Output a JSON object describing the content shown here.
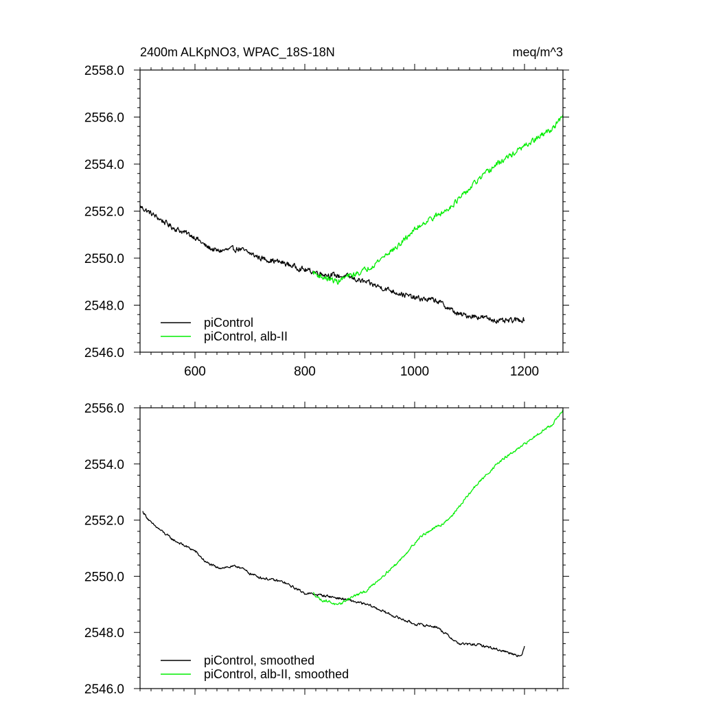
{
  "figure_title_left": "2400m ALKpNO3, WPAC_18S-18N",
  "figure_title_right": "meq/m^3",
  "colors": {
    "control": "#000000",
    "albII": "#00ee00"
  },
  "chart_data": [
    {
      "type": "line",
      "title": "2400m ALKpNO3, WPAC_18S-18N",
      "units": "meq/m^3",
      "xlim": [
        500,
        1270
      ],
      "ylim": [
        2546.0,
        2558.0
      ],
      "xticks": [
        600,
        800,
        1000,
        1200
      ],
      "xtick_labels": [
        "600",
        "800",
        "1000",
        "1200"
      ],
      "yticks": [
        2546.0,
        2548.0,
        2550.0,
        2552.0,
        2554.0,
        2556.0,
        2558.0
      ],
      "ytick_labels": [
        "2546.0",
        "2548.0",
        "2550.0",
        "2552.0",
        "2554.0",
        "2556.0",
        "2558.0"
      ],
      "legend_position": "bottom-left",
      "series": [
        {
          "name": "piControl",
          "color": "#000000",
          "noise": 0.18,
          "x": [
            500,
            520,
            560,
            600,
            620,
            640,
            680,
            700,
            720,
            760,
            800,
            840,
            880,
            920,
            960,
            1000,
            1040,
            1060,
            1080,
            1120,
            1160,
            1200
          ],
          "y": [
            2552.2,
            2551.9,
            2551.3,
            2550.9,
            2550.5,
            2550.3,
            2550.4,
            2550.2,
            2550.0,
            2549.8,
            2549.5,
            2549.3,
            2549.2,
            2548.9,
            2548.6,
            2548.3,
            2548.2,
            2547.9,
            2547.6,
            2547.5,
            2547.3,
            2547.4
          ]
        },
        {
          "name": "piControl, alb-II",
          "color": "#00ee00",
          "noise": 0.18,
          "x": [
            815,
            830,
            845,
            860,
            875,
            890,
            910,
            930,
            950,
            970,
            990,
            1010,
            1030,
            1050,
            1070,
            1090,
            1110,
            1130,
            1150,
            1170,
            1190,
            1210,
            1230,
            1250,
            1270
          ],
          "y": [
            2549.4,
            2549.2,
            2549.1,
            2549.0,
            2549.2,
            2549.3,
            2549.5,
            2549.8,
            2550.2,
            2550.5,
            2551.0,
            2551.4,
            2551.7,
            2551.9,
            2552.3,
            2552.7,
            2553.2,
            2553.6,
            2554.0,
            2554.3,
            2554.6,
            2554.9,
            2555.2,
            2555.5,
            2556.0
          ]
        }
      ]
    },
    {
      "type": "line",
      "title": "",
      "xlim": [
        500,
        1270
      ],
      "ylim": [
        2546.0,
        2556.0
      ],
      "xticks": [
        600,
        800,
        1000,
        1200
      ],
      "xtick_labels": [],
      "yticks": [
        2546.0,
        2548.0,
        2550.0,
        2552.0,
        2554.0,
        2556.0
      ],
      "ytick_labels": [
        "2546.0",
        "2548.0",
        "2550.0",
        "2552.0",
        "2554.0",
        "2556.0"
      ],
      "legend_position": "bottom-left",
      "series": [
        {
          "name": "piControl, smoothed",
          "color": "#000000",
          "noise": 0.07,
          "x": [
            505,
            520,
            560,
            600,
            620,
            640,
            680,
            700,
            720,
            760,
            800,
            840,
            880,
            920,
            960,
            1000,
            1040,
            1060,
            1080,
            1120,
            1160,
            1195,
            1200
          ],
          "y": [
            2552.3,
            2551.9,
            2551.3,
            2550.9,
            2550.5,
            2550.3,
            2550.35,
            2550.1,
            2549.95,
            2549.8,
            2549.4,
            2549.3,
            2549.15,
            2548.95,
            2548.6,
            2548.3,
            2548.2,
            2547.9,
            2547.6,
            2547.55,
            2547.35,
            2547.15,
            2547.5
          ]
        },
        {
          "name": "piControl, alb-II, smoothed",
          "color": "#00ee00",
          "noise": 0.07,
          "x": [
            815,
            830,
            845,
            860,
            875,
            890,
            910,
            930,
            950,
            970,
            990,
            1010,
            1030,
            1050,
            1070,
            1090,
            1110,
            1130,
            1150,
            1170,
            1190,
            1210,
            1230,
            1250,
            1270
          ],
          "y": [
            2549.4,
            2549.15,
            2549.1,
            2548.95,
            2549.15,
            2549.3,
            2549.45,
            2549.8,
            2550.15,
            2550.5,
            2550.95,
            2551.4,
            2551.65,
            2551.85,
            2552.2,
            2552.7,
            2553.2,
            2553.6,
            2554.0,
            2554.3,
            2554.55,
            2554.85,
            2555.15,
            2555.4,
            2555.9
          ]
        }
      ]
    }
  ]
}
